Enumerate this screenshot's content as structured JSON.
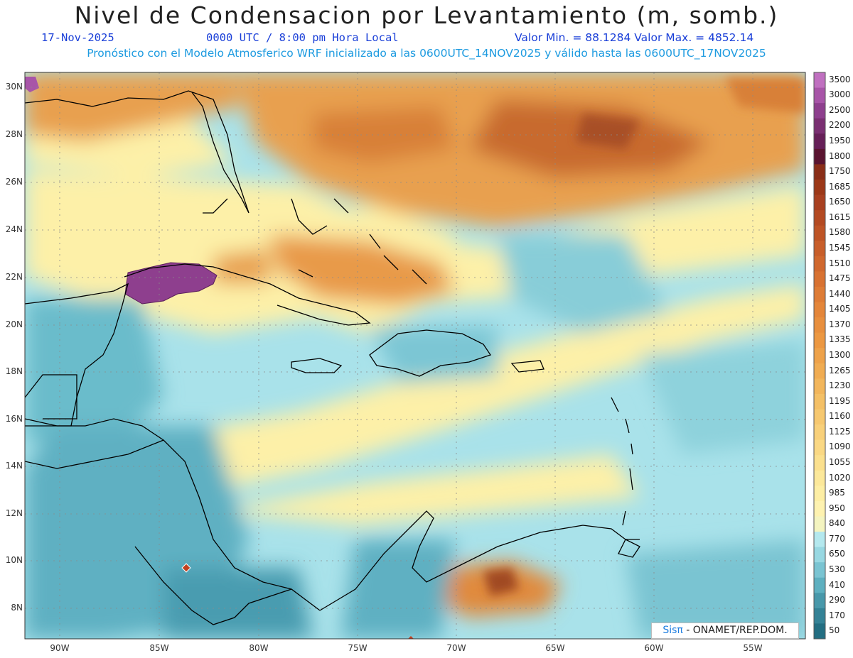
{
  "header": {
    "title": "Nivel de Condensacion por Levantamiento (m, somb.)",
    "date": "17-Nov-2025",
    "time": "0000 UTC / 8:00 pm Hora Local",
    "stats": "Valor Min. = 88.1284   Valor Max. = 4852.14",
    "model_info": "Pronóstico con el Modelo Atmosferico WRF inicializado a las 0600UTC_14NOV2025 y válido hasta las  0600UTC_17NOV2025"
  },
  "lat_labels": [
    "30N",
    "28N",
    "26N",
    "24N",
    "22N",
    "20N",
    "18N",
    "16N",
    "14N",
    "12N",
    "10N",
    "8N"
  ],
  "lon_labels": [
    "90W",
    "85W",
    "80W",
    "75W",
    "70W",
    "65W",
    "60W",
    "55W"
  ],
  "colorbar": {
    "labels": [
      "3500",
      "3000",
      "2500",
      "2200",
      "1950",
      "1800",
      "1750",
      "1685",
      "1650",
      "1615",
      "1580",
      "1545",
      "1510",
      "1475",
      "1440",
      "1405",
      "1370",
      "1335",
      "1300",
      "1265",
      "1230",
      "1195",
      "1160",
      "1125",
      "1090",
      "1055",
      "1020",
      "985",
      "950",
      "840",
      "770",
      "650",
      "530",
      "410",
      "290",
      "170",
      "50"
    ],
    "colors": [
      "#c070c0",
      "#a855a8",
      "#8e3f8e",
      "#7a2f72",
      "#661f58",
      "#5a1430",
      "#8a2e18",
      "#9c3818",
      "#a84020",
      "#b44a22",
      "#be5426",
      "#c85e2a",
      "#d0682e",
      "#d87232",
      "#de7c36",
      "#e4863a",
      "#e88f3e",
      "#ec9842",
      "#eea24a",
      "#f0ac52",
      "#f2b65c",
      "#f4c066",
      "#f6c870",
      "#f8d07a",
      "#fad884",
      "#fbe08e",
      "#fce89a",
      "#fdeea4",
      "#fef2b0",
      "#f4f4c0",
      "#b4e8ee",
      "#98d8e2",
      "#7ac4d2",
      "#5eb0c0",
      "#4898aa",
      "#348296",
      "#236e82"
    ]
  },
  "credit": {
    "brand": "Sisπ",
    "text": " - ONAMET/REP.DOM."
  }
}
